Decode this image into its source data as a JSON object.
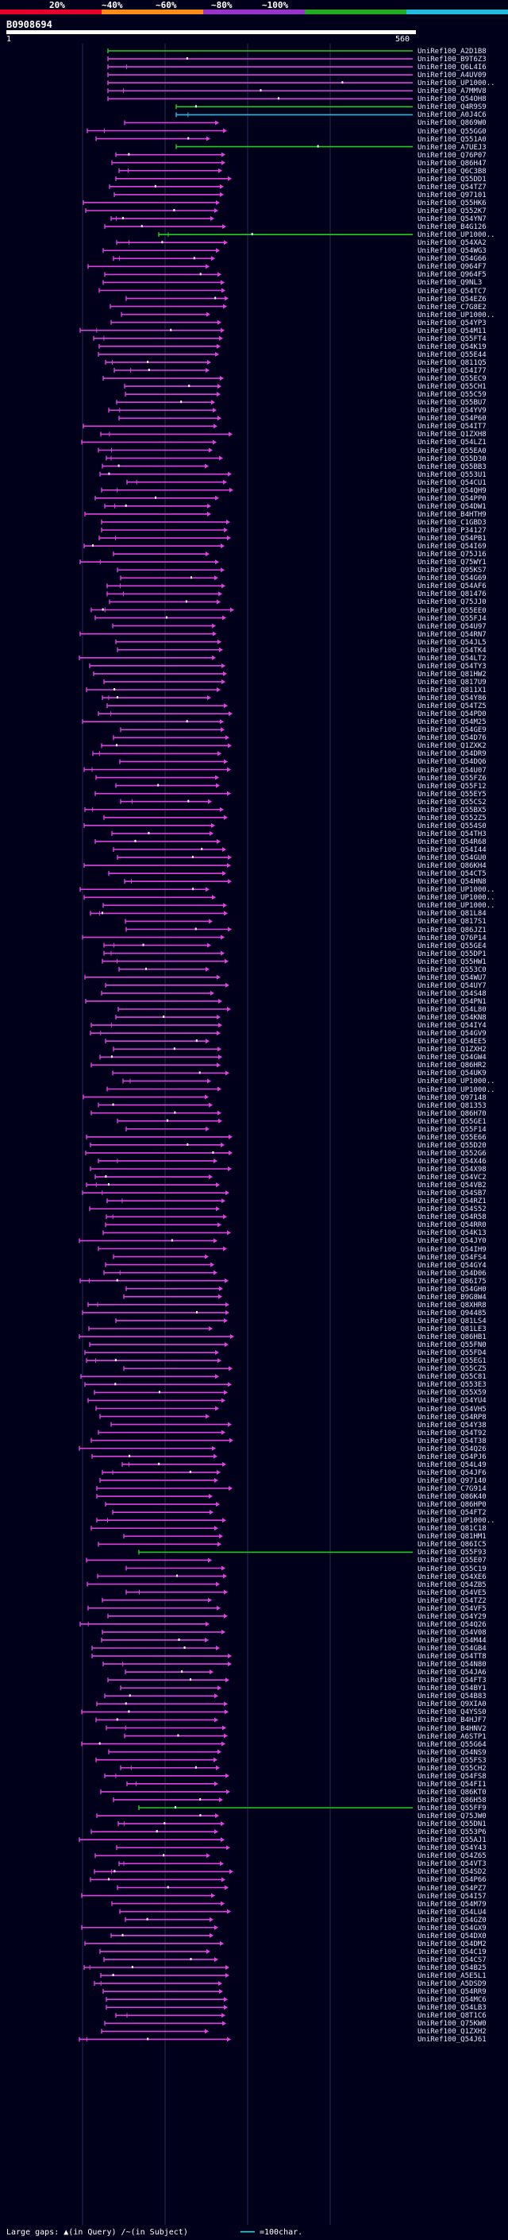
{
  "legend": {
    "labels": [
      "20%",
      "~40%",
      "~60%",
      "~80%",
      "~100%"
    ],
    "colors": [
      "#e8002a",
      "#ff8c1a",
      "#9933cc",
      "#22aa22",
      "#22bbdd"
    ]
  },
  "query": {
    "id": "B0908694",
    "start": "1",
    "end": "560"
  },
  "hit_color": "#e040e0",
  "hits": [
    {
      "label": "UniRef100_A2D1B8",
      "color": "#22cc22"
    },
    {
      "label": "UniRef100_B9T6Z3",
      "color": "#e040e0"
    },
    {
      "label": "UniRef100_Q6L4I6",
      "color": "#e040e0"
    },
    {
      "label": "UniRef100_A4UV09",
      "color": "#e040e0"
    },
    {
      "label": "UniRef100_UP1000..",
      "color": "#e040e0"
    },
    {
      "label": "UniRef100_A7MMV8",
      "color": "#e040e0"
    },
    {
      "label": "UniRef100_Q54OH8",
      "color": "#e040e0"
    },
    {
      "label": "UniRef100_Q4R9S9",
      "color": "#22cc22"
    },
    {
      "label": "UniRef100_A0J4C6",
      "color": "#22bbdd"
    },
    {
      "label": "UniRef100_Q869W0",
      "color": "#e040e0"
    },
    {
      "label": "UniRef100_Q55GG0",
      "color": "#e040e0"
    },
    {
      "label": "UniRef100_Q551A0",
      "color": "#e040e0"
    },
    {
      "label": "UniRef100_A7UEJ3",
      "color": "#22cc22"
    },
    {
      "label": "UniRef100_Q76P07",
      "color": "#e040e0"
    },
    {
      "label": "UniRef100_Q86H47",
      "color": "#e040e0"
    },
    {
      "label": "UniRef100_Q6C3B8",
      "color": "#e040e0"
    },
    {
      "label": "UniRef100_Q55DD1",
      "color": "#e040e0"
    },
    {
      "label": "UniRef100_Q54TZ7",
      "color": "#e040e0"
    },
    {
      "label": "UniRef100_Q97101",
      "color": "#e040e0"
    },
    {
      "label": "UniRef100_Q55HK6",
      "color": "#e040e0"
    },
    {
      "label": "UniRef100_Q552K7",
      "color": "#e040e0"
    },
    {
      "label": "UniRef100_Q54YN7",
      "color": "#e040e0"
    },
    {
      "label": "UniRef100_B4G126",
      "color": "#e040e0"
    },
    {
      "label": "UniRef100_UP1000..",
      "color": "#22cc22"
    },
    {
      "label": "UniRef100_Q54XA2",
      "color": "#e040e0"
    },
    {
      "label": "UniRef100_Q54WG3",
      "color": "#e040e0"
    },
    {
      "label": "UniRef100_Q54G66",
      "color": "#e040e0"
    },
    {
      "label": "UniRef100_Q964F7",
      "color": "#e040e0"
    },
    {
      "label": "UniRef100_Q964F5",
      "color": "#e040e0"
    },
    {
      "label": "UniRef100_Q9NL3",
      "color": "#e040e0"
    },
    {
      "label": "UniRef100_Q54TC7",
      "color": "#e040e0"
    },
    {
      "label": "UniRef100_Q54EZ6",
      "color": "#e040e0"
    },
    {
      "label": "UniRef100_C7G8E2",
      "color": "#e040e0"
    },
    {
      "label": "UniRef100_UP1000..",
      "color": "#e040e0"
    },
    {
      "label": "UniRef100_Q54YP3",
      "color": "#e040e0"
    },
    {
      "label": "UniRef100_Q54M11",
      "color": "#e040e0"
    },
    {
      "label": "UniRef100_Q55FT4",
      "color": "#e040e0"
    },
    {
      "label": "UniRef100_Q54K19",
      "color": "#e040e0"
    },
    {
      "label": "UniRef100_Q55E44",
      "color": "#e040e0"
    },
    {
      "label": "UniRef100_Q811Q5",
      "color": "#e040e0"
    },
    {
      "label": "UniRef100_Q54I77",
      "color": "#e040e0"
    },
    {
      "label": "UniRef100_Q55EC9",
      "color": "#e040e0"
    },
    {
      "label": "UniRef100_Q55CH1",
      "color": "#e040e0"
    },
    {
      "label": "UniRef100_Q55C59",
      "color": "#e040e0"
    },
    {
      "label": "UniRef100_Q55BU7",
      "color": "#e040e0"
    },
    {
      "label": "UniRef100_Q54YV9",
      "color": "#e040e0"
    },
    {
      "label": "UniRef100_Q54P60",
      "color": "#e040e0"
    },
    {
      "label": "UniRef100_Q54IT7",
      "color": "#e040e0"
    },
    {
      "label": "UniRef100_Q1ZXH8",
      "color": "#e040e0"
    },
    {
      "label": "UniRef100_Q54LZ1",
      "color": "#e040e0"
    },
    {
      "label": "UniRef100_Q55EA0",
      "color": "#e040e0"
    },
    {
      "label": "UniRef100_Q55D30",
      "color": "#e040e0"
    },
    {
      "label": "UniRef100_Q55BB3",
      "color": "#e040e0"
    },
    {
      "label": "UniRef100_Q553U1",
      "color": "#e040e0"
    },
    {
      "label": "UniRef100_Q54CU1",
      "color": "#e040e0"
    },
    {
      "label": "UniRef100_Q54QH9",
      "color": "#e040e0"
    },
    {
      "label": "UniRef100_Q54PP0",
      "color": "#e040e0"
    },
    {
      "label": "UniRef100_Q54DW1",
      "color": "#e040e0"
    },
    {
      "label": "UniRef100_B4HTH9",
      "color": "#e040e0"
    },
    {
      "label": "UniRef100_C1GBD3",
      "color": "#e040e0"
    },
    {
      "label": "UniRef100_P34127",
      "color": "#e040e0"
    },
    {
      "label": "UniRef100_Q54PB1",
      "color": "#e040e0"
    },
    {
      "label": "UniRef100_Q54I69",
      "color": "#e040e0"
    },
    {
      "label": "UniRef100_Q75J16",
      "color": "#e040e0"
    },
    {
      "label": "UniRef100_Q75WY1",
      "color": "#e040e0"
    },
    {
      "label": "UniRef100_Q95KS7",
      "color": "#e040e0"
    },
    {
      "label": "UniRef100_Q54G69",
      "color": "#e040e0"
    },
    {
      "label": "UniRef100_Q54AF6",
      "color": "#e040e0"
    },
    {
      "label": "UniRef100_Q81476",
      "color": "#e040e0"
    },
    {
      "label": "UniRef100_Q75JJ0",
      "color": "#e040e0"
    },
    {
      "label": "UniRef100_Q55EE0",
      "color": "#e040e0"
    },
    {
      "label": "UniRef100_Q55FJ4",
      "color": "#e040e0"
    },
    {
      "label": "UniRef100_Q54U97",
      "color": "#e040e0"
    },
    {
      "label": "UniRef100_Q54RN7",
      "color": "#e040e0"
    },
    {
      "label": "UniRef100_Q54JL5",
      "color": "#e040e0"
    },
    {
      "label": "UniRef100_Q54TK4",
      "color": "#e040e0"
    },
    {
      "label": "UniRef100_Q54LT2",
      "color": "#e040e0"
    },
    {
      "label": "UniRef100_Q54TY3",
      "color": "#e040e0"
    },
    {
      "label": "UniRef100_Q81HW2",
      "color": "#e040e0"
    },
    {
      "label": "UniRef100_Q817U9",
      "color": "#e040e0"
    },
    {
      "label": "UniRef100_Q811X1",
      "color": "#e040e0"
    },
    {
      "label": "UniRef100_Q54Y86",
      "color": "#e040e0"
    },
    {
      "label": "UniRef100_Q54TZ5",
      "color": "#e040e0"
    },
    {
      "label": "UniRef100_Q54PD0",
      "color": "#e040e0"
    },
    {
      "label": "UniRef100_Q54M25",
      "color": "#e040e0"
    },
    {
      "label": "UniRef100_Q54GE9",
      "color": "#e040e0"
    },
    {
      "label": "UniRef100_Q54D76",
      "color": "#e040e0"
    },
    {
      "label": "UniRef100_Q1ZXK2",
      "color": "#e040e0"
    },
    {
      "label": "UniRef100_Q54DR9",
      "color": "#e040e0"
    },
    {
      "label": "UniRef100_Q54DQ6",
      "color": "#e040e0"
    },
    {
      "label": "UniRef100_Q54U07",
      "color": "#e040e0"
    },
    {
      "label": "UniRef100_Q55FZ6",
      "color": "#e040e0"
    },
    {
      "label": "UniRef100_Q55F12",
      "color": "#e040e0"
    },
    {
      "label": "UniRef100_Q55EY5",
      "color": "#e040e0"
    },
    {
      "label": "UniRef100_Q55CS2",
      "color": "#e040e0"
    },
    {
      "label": "UniRef100_Q55BX5",
      "color": "#e040e0"
    },
    {
      "label": "UniRef100_Q552Z5",
      "color": "#e040e0"
    },
    {
      "label": "UniRef100_Q554S0",
      "color": "#e040e0"
    },
    {
      "label": "UniRef100_Q54TH3",
      "color": "#e040e0"
    },
    {
      "label": "UniRef100_Q54R68",
      "color": "#e040e0"
    },
    {
      "label": "UniRef100_Q54I44",
      "color": "#e040e0"
    },
    {
      "label": "UniRef100_Q54GU0",
      "color": "#e040e0"
    },
    {
      "label": "UniRef100_Q86KH4",
      "color": "#e040e0"
    },
    {
      "label": "UniRef100_Q54CT5",
      "color": "#e040e0"
    },
    {
      "label": "UniRef100_Q54HN8",
      "color": "#e040e0"
    },
    {
      "label": "UniRef100_UP1000..",
      "color": "#e040e0"
    },
    {
      "label": "UniRef100_UP1000..",
      "color": "#e040e0"
    },
    {
      "label": "UniRef100_UP1000..",
      "color": "#e040e0"
    },
    {
      "label": "UniRef100_Q81L84",
      "color": "#e040e0"
    },
    {
      "label": "UniRef100_Q817S1",
      "color": "#e040e0"
    },
    {
      "label": "UniRef100_Q86JZ1",
      "color": "#e040e0"
    },
    {
      "label": "UniRef100_Q76P14",
      "color": "#e040e0"
    },
    {
      "label": "UniRef100_Q55GE4",
      "color": "#e040e0"
    },
    {
      "label": "UniRef100_Q55DP1",
      "color": "#e040e0"
    },
    {
      "label": "UniRef100_Q55HW1",
      "color": "#e040e0"
    },
    {
      "label": "UniRef100_Q553C0",
      "color": "#e040e0"
    },
    {
      "label": "UniRef100_Q54WU7",
      "color": "#e040e0"
    },
    {
      "label": "UniRef100_Q54UY7",
      "color": "#e040e0"
    },
    {
      "label": "UniRef100_Q54S48",
      "color": "#e040e0"
    },
    {
      "label": "UniRef100_Q54PN1",
      "color": "#e040e0"
    },
    {
      "label": "UniRef100_Q54L80",
      "color": "#e040e0"
    },
    {
      "label": "UniRef100_Q54KN8",
      "color": "#e040e0"
    },
    {
      "label": "UniRef100_Q54IY4",
      "color": "#e040e0"
    },
    {
      "label": "UniRef100_Q54GV9",
      "color": "#e040e0"
    },
    {
      "label": "UniRef100_Q54EE5",
      "color": "#e040e0"
    },
    {
      "label": "UniRef100_Q1ZXH2",
      "color": "#e040e0"
    },
    {
      "label": "UniRef100_Q54GW4",
      "color": "#e040e0"
    },
    {
      "label": "UniRef100_Q86HR2",
      "color": "#e040e0"
    },
    {
      "label": "UniRef100_Q54UK9",
      "color": "#e040e0"
    },
    {
      "label": "UniRef100_UP1000..",
      "color": "#e040e0"
    },
    {
      "label": "UniRef100_UP1000..",
      "color": "#e040e0"
    },
    {
      "label": "UniRef100_Q97148",
      "color": "#e040e0"
    },
    {
      "label": "UniRef100_Q81353",
      "color": "#e040e0"
    },
    {
      "label": "UniRef100_Q86H70",
      "color": "#e040e0"
    },
    {
      "label": "UniRef100_Q55GE1",
      "color": "#e040e0"
    },
    {
      "label": "UniRef100_Q55F14",
      "color": "#e040e0"
    },
    {
      "label": "UniRef100_Q55E66",
      "color": "#e040e0"
    },
    {
      "label": "UniRef100_Q55D20",
      "color": "#e040e0"
    },
    {
      "label": "UniRef100_Q552G6",
      "color": "#e040e0"
    },
    {
      "label": "UniRef100_Q54X46",
      "color": "#e040e0"
    },
    {
      "label": "UniRef100_Q54X98",
      "color": "#e040e0"
    },
    {
      "label": "UniRef100_Q54VC2",
      "color": "#e040e0"
    },
    {
      "label": "UniRef100_Q54VB2",
      "color": "#e040e0"
    },
    {
      "label": "UniRef100_Q54SB7",
      "color": "#e040e0"
    },
    {
      "label": "UniRef100_Q54RZ1",
      "color": "#e040e0"
    },
    {
      "label": "UniRef100_Q54S52",
      "color": "#e040e0"
    },
    {
      "label": "UniRef100_Q54R58",
      "color": "#e040e0"
    },
    {
      "label": "UniRef100_Q54RR0",
      "color": "#e040e0"
    },
    {
      "label": "UniRef100_Q54K13",
      "color": "#e040e0"
    },
    {
      "label": "UniRef100_Q54JY0",
      "color": "#e040e0"
    },
    {
      "label": "UniRef100_Q54IH9",
      "color": "#e040e0"
    },
    {
      "label": "UniRef100_Q54FS4",
      "color": "#e040e0"
    },
    {
      "label": "UniRef100_Q54GY4",
      "color": "#e040e0"
    },
    {
      "label": "UniRef100_Q54D06",
      "color": "#e040e0"
    },
    {
      "label": "UniRef100_Q86I75",
      "color": "#e040e0"
    },
    {
      "label": "UniRef100_Q54GH0",
      "color": "#e040e0"
    },
    {
      "label": "UniRef100_B9G8W4",
      "color": "#e040e0"
    },
    {
      "label": "UniRef100_Q8XHR8",
      "color": "#e040e0"
    },
    {
      "label": "UniRef100_Q94485",
      "color": "#e040e0"
    },
    {
      "label": "UniRef100_Q81LS4",
      "color": "#e040e0"
    },
    {
      "label": "UniRef100_Q81LE3",
      "color": "#e040e0"
    },
    {
      "label": "UniRef100_Q86HB1",
      "color": "#e040e0"
    },
    {
      "label": "UniRef100_Q55FN0",
      "color": "#e040e0"
    },
    {
      "label": "UniRef100_Q55FD4",
      "color": "#e040e0"
    },
    {
      "label": "UniRef100_Q55EG1",
      "color": "#e040e0"
    },
    {
      "label": "UniRef100_Q55CZ5",
      "color": "#e040e0"
    },
    {
      "label": "UniRef100_Q55C81",
      "color": "#e040e0"
    },
    {
      "label": "UniRef100_Q553E3",
      "color": "#e040e0"
    },
    {
      "label": "UniRef100_Q55X59",
      "color": "#e040e0"
    },
    {
      "label": "UniRef100_Q54YU4",
      "color": "#e040e0"
    },
    {
      "label": "UniRef100_Q54VH5",
      "color": "#e040e0"
    },
    {
      "label": "UniRef100_Q54RP8",
      "color": "#e040e0"
    },
    {
      "label": "UniRef100_Q54Y38",
      "color": "#e040e0"
    },
    {
      "label": "UniRef100_Q54T92",
      "color": "#e040e0"
    },
    {
      "label": "UniRef100_Q54T38",
      "color": "#e040e0"
    },
    {
      "label": "UniRef100_Q54Q26",
      "color": "#e040e0"
    },
    {
      "label": "UniRef100_Q54PJ6",
      "color": "#e040e0"
    },
    {
      "label": "UniRef100_Q54L49",
      "color": "#e040e0"
    },
    {
      "label": "UniRef100_Q54JF6",
      "color": "#e040e0"
    },
    {
      "label": "UniRef100_Q97140",
      "color": "#e040e0"
    },
    {
      "label": "UniRef100_C7G914",
      "color": "#e040e0"
    },
    {
      "label": "UniRef100_Q86K40",
      "color": "#e040e0"
    },
    {
      "label": "UniRef100_Q86HP0",
      "color": "#e040e0"
    },
    {
      "label": "UniRef100_Q54FT2",
      "color": "#e040e0"
    },
    {
      "label": "UniRef100_UP1000..",
      "color": "#e040e0"
    },
    {
      "label": "UniRef100_Q81C18",
      "color": "#e040e0"
    },
    {
      "label": "UniRef100_Q81HM1",
      "color": "#e040e0"
    },
    {
      "label": "UniRef100_Q86IC5",
      "color": "#e040e0"
    },
    {
      "label": "UniRef100_Q55F93",
      "color": "#22cc22"
    },
    {
      "label": "UniRef100_Q55E07",
      "color": "#e040e0"
    },
    {
      "label": "UniRef100_Q55C19",
      "color": "#e040e0"
    },
    {
      "label": "UniRef100_Q54XE6",
      "color": "#e040e0"
    },
    {
      "label": "UniRef100_Q54ZB5",
      "color": "#e040e0"
    },
    {
      "label": "UniRef100_Q54VE5",
      "color": "#e040e0"
    },
    {
      "label": "UniRef100_Q54TZ2",
      "color": "#e040e0"
    },
    {
      "label": "UniRef100_Q54VF5",
      "color": "#e040e0"
    },
    {
      "label": "UniRef100_Q54Y29",
      "color": "#e040e0"
    },
    {
      "label": "UniRef100_Q54Q26",
      "color": "#e040e0"
    },
    {
      "label": "UniRef100_Q54V08",
      "color": "#e040e0"
    },
    {
      "label": "UniRef100_Q54M44",
      "color": "#e040e0"
    },
    {
      "label": "UniRef100_Q54GB4",
      "color": "#e040e0"
    },
    {
      "label": "UniRef100_Q54TT8",
      "color": "#e040e0"
    },
    {
      "label": "UniRef100_Q54N80",
      "color": "#e040e0"
    },
    {
      "label": "UniRef100_Q54JA6",
      "color": "#e040e0"
    },
    {
      "label": "UniRef100_Q54FT3",
      "color": "#e040e0"
    },
    {
      "label": "UniRef100_Q54BY1",
      "color": "#e040e0"
    },
    {
      "label": "UniRef100_Q54B83",
      "color": "#e040e0"
    },
    {
      "label": "UniRef100_Q9XIA0",
      "color": "#e040e0"
    },
    {
      "label": "UniRef100_Q4YSS0",
      "color": "#e040e0"
    },
    {
      "label": "UniRef100_B4HJF7",
      "color": "#e040e0"
    },
    {
      "label": "UniRef100_B4HNV2",
      "color": "#e040e0"
    },
    {
      "label": "UniRef100_A6STP1",
      "color": "#e040e0"
    },
    {
      "label": "UniRef100_Q55G64",
      "color": "#e040e0"
    },
    {
      "label": "UniRef100_Q54NS9",
      "color": "#e040e0"
    },
    {
      "label": "UniRef100_Q55FS3",
      "color": "#e040e0"
    },
    {
      "label": "UniRef100_Q55CH2",
      "color": "#e040e0"
    },
    {
      "label": "UniRef100_Q54FS8",
      "color": "#e040e0"
    },
    {
      "label": "UniRef100_Q54FI1",
      "color": "#e040e0"
    },
    {
      "label": "UniRef100_Q86KT0",
      "color": "#e040e0"
    },
    {
      "label": "UniRef100_Q86H58",
      "color": "#e040e0"
    },
    {
      "label": "UniRef100_Q55FF9",
      "color": "#22cc22"
    },
    {
      "label": "UniRef100_Q75JW0",
      "color": "#e040e0"
    },
    {
      "label": "UniRef100_Q55DN1",
      "color": "#e040e0"
    },
    {
      "label": "UniRef100_Q553P6",
      "color": "#e040e0"
    },
    {
      "label": "UniRef100_Q55AJ1",
      "color": "#e040e0"
    },
    {
      "label": "UniRef100_Q54Y43",
      "color": "#e040e0"
    },
    {
      "label": "UniRef100_Q54Z65",
      "color": "#e040e0"
    },
    {
      "label": "UniRef100_Q54VT3",
      "color": "#e040e0"
    },
    {
      "label": "UniRef100_Q54SD2",
      "color": "#e040e0"
    },
    {
      "label": "UniRef100_Q54P66",
      "color": "#e040e0"
    },
    {
      "label": "UniRef100_Q54PZ7",
      "color": "#e040e0"
    },
    {
      "label": "UniRef100_Q54I57",
      "color": "#e040e0"
    },
    {
      "label": "UniRef100_Q54M79",
      "color": "#e040e0"
    },
    {
      "label": "UniRef100_Q54LU4",
      "color": "#e040e0"
    },
    {
      "label": "UniRef100_Q54GZ0",
      "color": "#e040e0"
    },
    {
      "label": "UniRef100_Q54GX9",
      "color": "#e040e0"
    },
    {
      "label": "UniRef100_Q54DX0",
      "color": "#e040e0"
    },
    {
      "label": "UniRef100_Q54DM2",
      "color": "#e040e0"
    },
    {
      "label": "UniRef100_Q54C19",
      "color": "#e040e0"
    },
    {
      "label": "UniRef100_Q54CS7",
      "color": "#e040e0"
    },
    {
      "label": "UniRef100_Q54B25",
      "color": "#e040e0"
    },
    {
      "label": "UniRef100_A5E5L1",
      "color": "#e040e0"
    },
    {
      "label": "UniRef100_A5DSD9",
      "color": "#e040e0"
    },
    {
      "label": "UniRef100_Q54RR9",
      "color": "#e040e0"
    },
    {
      "label": "UniRef100_Q54MC6",
      "color": "#e040e0"
    },
    {
      "label": "UniRef100_Q54LB3",
      "color": "#e040e0"
    },
    {
      "label": "UniRef100_Q8T1C6",
      "color": "#e040e0"
    },
    {
      "label": "UniRef100_Q75KW0",
      "color": "#e040e0"
    },
    {
      "label": "UniRef100_Q1ZXH2",
      "color": "#e040e0"
    },
    {
      "label": "UniRef100_Q54J61",
      "color": "#e040e0"
    }
  ],
  "footer": {
    "large_gaps": "Large gaps:",
    "query_gap": "in Query",
    "subject_gap": "in Subject",
    "scale": "=100char."
  }
}
